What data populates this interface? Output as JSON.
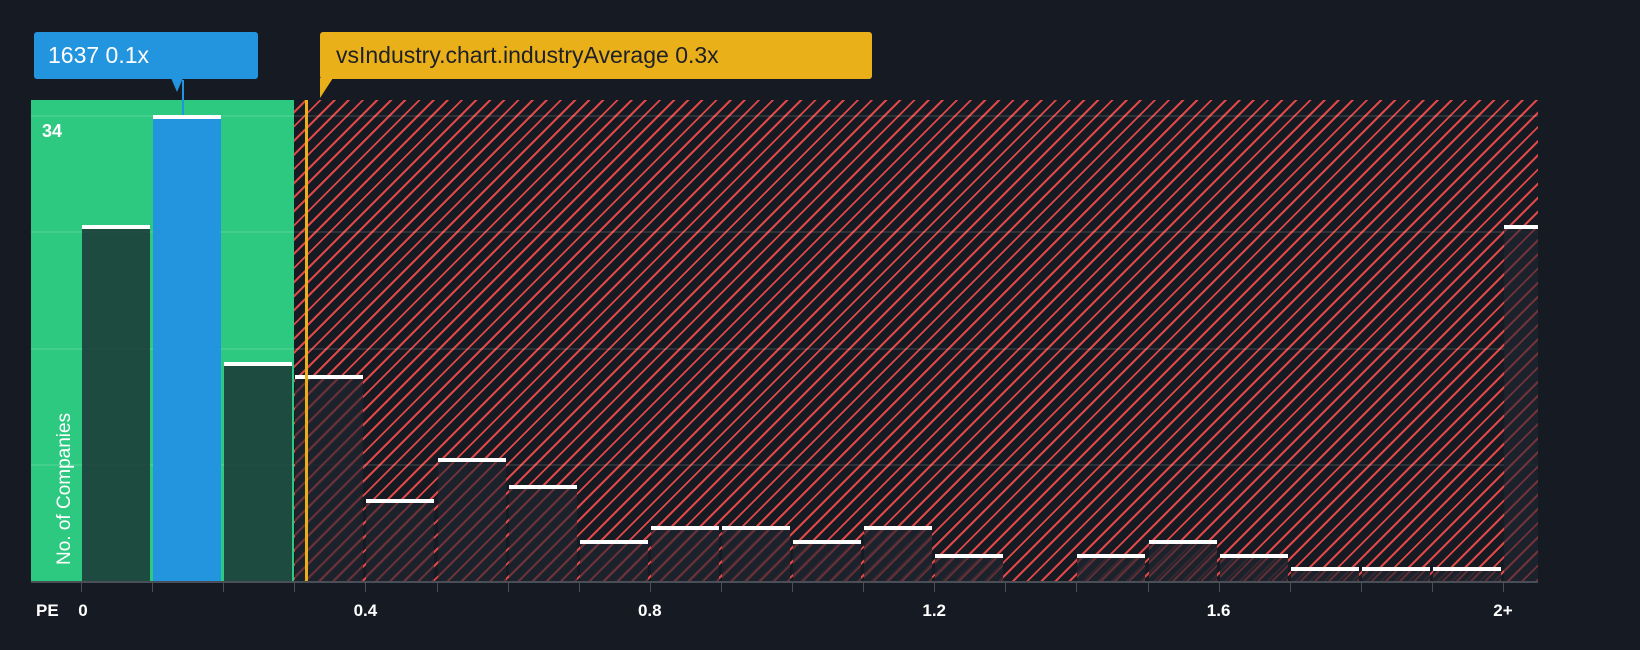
{
  "company_callout": {
    "ticker": "1637",
    "value": "0.1x",
    "label": "1637 0.1x",
    "color": "#2394de"
  },
  "industry_callout": {
    "label": "vsIndustry.chart.industryAverage 0.3x",
    "value": "0.3x",
    "color": "#e9b019"
  },
  "axis": {
    "x_title": "PE",
    "y_title": "No. of Companies",
    "y_top_label": "34"
  },
  "colors": {
    "background": "#161b23",
    "undervalued_zone": "#2ec981",
    "overvalued_hatch": "#e04848",
    "company_bar": "#2394de",
    "industry_line": "#e9b019"
  },
  "chart_data": {
    "type": "bar",
    "title": "",
    "xlabel": "PE",
    "ylabel": "No. of Companies",
    "categories": [
      "0-0.1",
      "0.1-0.2",
      "0.2-0.3",
      "0.3-0.4",
      "0.4-0.5",
      "0.5-0.6",
      "0.6-0.7",
      "0.7-0.8",
      "0.8-0.9",
      "0.9-1.0",
      "1.0-1.1",
      "1.1-1.2",
      "1.2-1.3",
      "1.3-1.4",
      "1.4-1.5",
      "1.5-1.6",
      "1.6-1.7",
      "1.7-1.8",
      "1.8-1.9",
      "1.9-2.0",
      "2+"
    ],
    "values": [
      26,
      34,
      16,
      15,
      6,
      9,
      7,
      3,
      4,
      4,
      3,
      4,
      2,
      0,
      2,
      3,
      2,
      1,
      1,
      1,
      26
    ],
    "x_tick_labels": [
      "0",
      "0.4",
      "0.8",
      "1.2",
      "1.6",
      "2+"
    ],
    "ylim": [
      0,
      35
    ],
    "y_tick_labels": [
      "34"
    ],
    "grid": true,
    "highlight": {
      "category": "0.1-0.2",
      "label": "1637 0.1x"
    },
    "reference_line": {
      "x": 0.3,
      "label": "vsIndustry.chart.industryAverage 0.3x"
    },
    "undervalued_range": [
      0,
      0.3
    ]
  }
}
